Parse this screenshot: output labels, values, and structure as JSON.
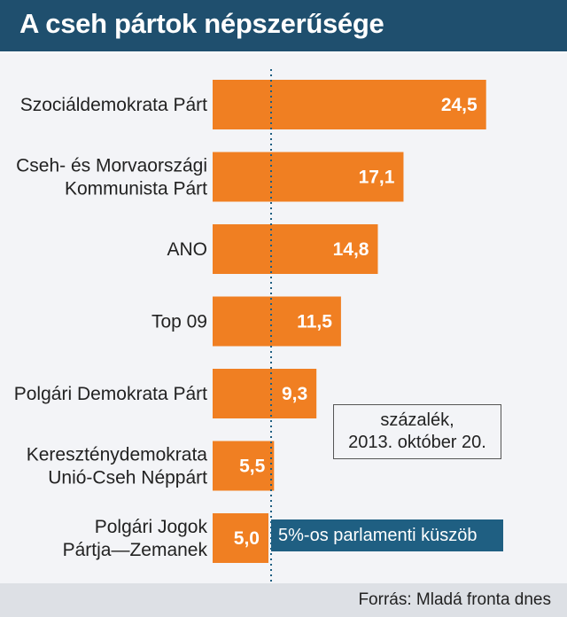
{
  "title": "A cseh pártok népszerűsége",
  "note": [
    "százalék,",
    "2013. október 20."
  ],
  "threshold_label": "5%-os parlamenti küszöb",
  "source": "Forrás: Mladá fronta dnes",
  "colors": {
    "bar": "#f07f22",
    "header": "#1f4f6e",
    "threshold": "#1f5f82"
  },
  "chart_data": {
    "type": "bar",
    "orientation": "horizontal",
    "title": "A cseh pártok népszerűsége",
    "categories": [
      [
        "Szociáldemokrata Párt"
      ],
      [
        "Cseh- és Morvaországi",
        "Kommunista Párt"
      ],
      [
        "ANO"
      ],
      [
        "Top 09"
      ],
      [
        "Polgári Demokrata Párt"
      ],
      [
        "Kereszténydemokrata",
        "Unió-Cseh Néppárt"
      ],
      [
        "Polgári Jogok",
        "Pártja—Zemanek"
      ]
    ],
    "values": [
      24.5,
      17.1,
      14.8,
      11.5,
      9.3,
      5.5,
      5.0
    ],
    "value_labels": [
      "24,5",
      "17,1",
      "14,8",
      "11,5",
      "9,3",
      "5,5",
      "5,0"
    ],
    "xlim": [
      0,
      28
    ],
    "threshold": 5
  }
}
